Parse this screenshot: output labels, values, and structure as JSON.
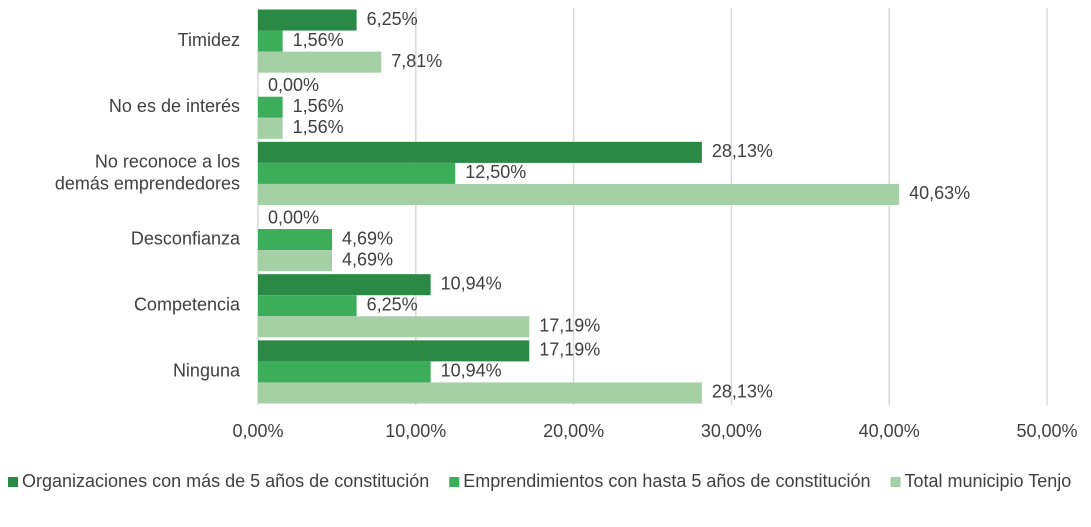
{
  "chart_data": {
    "type": "bar",
    "orientation": "horizontal",
    "categories": [
      "Timidez",
      "No es de interés",
      "No reconoce a los demás emprendedores",
      "Desconfianza",
      "Competencia",
      "Ninguna"
    ],
    "series": [
      {
        "name": "Organizaciones con más de 5 años de constitución",
        "color": "#2a8a45",
        "values": [
          6.25,
          0,
          28.13,
          0,
          10.94,
          17.19
        ],
        "value_labels": [
          "6,25%",
          "0,00%",
          "28,13%",
          "0,00%",
          "10,94%",
          "17,19%"
        ]
      },
      {
        "name": "Emprendimientos con hasta 5 años de constitución",
        "color": "#3cad5a",
        "values": [
          1.56,
          1.56,
          12.5,
          4.69,
          6.25,
          10.94
        ],
        "value_labels": [
          "1,56%",
          "1,56%",
          "12,50%",
          "4,69%",
          "6,25%",
          "10,94%"
        ]
      },
      {
        "name": "Total municipio Tenjo",
        "color": "#a5cfa5",
        "values": [
          7.81,
          1.56,
          40.63,
          4.69,
          17.19,
          28.13
        ],
        "value_labels": [
          "7,81%",
          "1,56%",
          "40,63%",
          "4,69%",
          "17,19%",
          "28,13%"
        ]
      }
    ],
    "xlim": [
      0,
      50
    ],
    "xticks": [
      {
        "value": 0,
        "label": "0,00%"
      },
      {
        "value": 10,
        "label": "10,00%"
      },
      {
        "value": 20,
        "label": "20,00%"
      },
      {
        "value": 30,
        "label": "30,00%"
      },
      {
        "value": 40,
        "label": "40,00%"
      },
      {
        "value": 50,
        "label": "50,00%"
      }
    ],
    "grid": true,
    "legend": "bottom"
  }
}
